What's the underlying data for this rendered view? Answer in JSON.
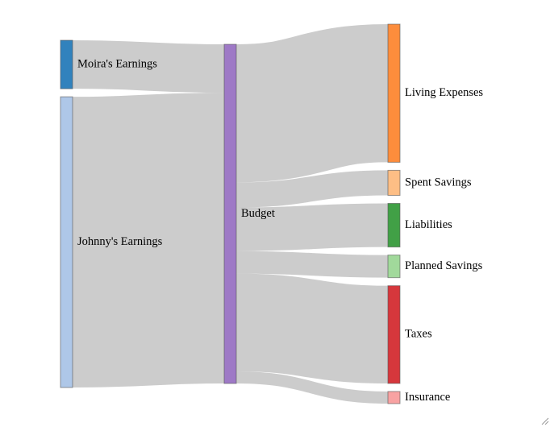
{
  "chart_data": {
    "type": "sankey",
    "nodes": [
      {
        "name": "Moira's Earnings",
        "color": "#3182bd"
      },
      {
        "name": "Johnny's Earnings",
        "color": "#aec7e8"
      },
      {
        "name": "Budget",
        "color": "#9e79c6"
      },
      {
        "name": "Living Expenses",
        "color": "#fd8d3c"
      },
      {
        "name": "Spent Savings",
        "color": "#fdbe85"
      },
      {
        "name": "Liabilities",
        "color": "#41a046"
      },
      {
        "name": "Planned Savings",
        "color": "#a1d99b"
      },
      {
        "name": "Taxes",
        "color": "#d6373c"
      },
      {
        "name": "Insurance",
        "color": "#f8a2a2"
      }
    ],
    "links": [
      {
        "source": 0,
        "target": 2,
        "value": 60
      },
      {
        "source": 1,
        "target": 2,
        "value": 360
      },
      {
        "source": 2,
        "target": 3,
        "value": 171
      },
      {
        "source": 2,
        "target": 4,
        "value": 31
      },
      {
        "source": 2,
        "target": 5,
        "value": 54
      },
      {
        "source": 2,
        "target": 6,
        "value": 28
      },
      {
        "source": 2,
        "target": 7,
        "value": 121
      },
      {
        "source": 2,
        "target": 8,
        "value": 15
      }
    ],
    "link_color": "#000000"
  }
}
